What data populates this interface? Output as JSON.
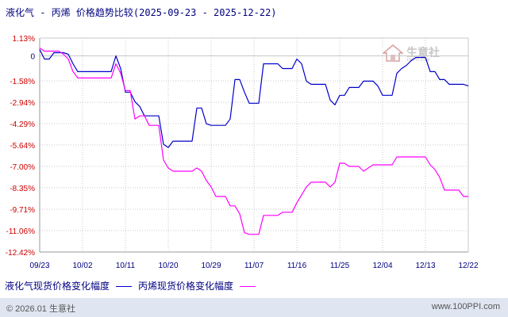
{
  "header": {
    "title": "液化气 - 丙烯 价格趋势比较(2025-09-23 - 2025-12-22)"
  },
  "legend": {
    "series1": "液化气现货价格变化幅度",
    "series2": "丙烯现货价格变化幅度"
  },
  "footer": {
    "copyright": "© 2026.01 生意社",
    "url": "www.100PPI.com"
  },
  "watermark": {
    "text": "生意社",
    "sub": "100PPI.COM"
  },
  "colors": {
    "series1": "#0000cc",
    "series2": "#ff00ff",
    "axis_text_red": "#cc0000",
    "axis_text_blue": "#000080",
    "grid": "#c8c8c8"
  },
  "chart_data": {
    "type": "line",
    "title": "液化气 - 丙烯 价格趋势比较(2025-09-23 - 2025-12-22)",
    "x_range": [
      "2025-09-23",
      "2025-12-22"
    ],
    "x_ticks": [
      "09/23",
      "10/02",
      "10/11",
      "10/20",
      "10/29",
      "11/07",
      "11/16",
      "11/25",
      "12/04",
      "12/13",
      "12/22"
    ],
    "y_ticks": [
      "1.13%",
      "0",
      "-1.58%",
      "-2.94%",
      "-4.29%",
      "-5.64%",
      "-7.00%",
      "-8.35%",
      "-9.71%",
      "-11.06%",
      "-12.42%"
    ],
    "ylim": [
      -12.42,
      1.13
    ],
    "grid": true,
    "legend_position": "bottom",
    "series": [
      {
        "name": "液化气现货价格变化幅度",
        "color": "#0000cc",
        "points": [
          [
            "09-23",
            0.4
          ],
          [
            "09-24",
            -0.2
          ],
          [
            "09-25",
            -0.2
          ],
          [
            "09-26",
            0.2
          ],
          [
            "09-27",
            0.2
          ],
          [
            "09-28",
            0.2
          ],
          [
            "09-29",
            0.1
          ],
          [
            "09-30",
            -0.5
          ],
          [
            "10-01",
            -1.0
          ],
          [
            "10-02",
            -1.0
          ],
          [
            "10-03",
            -1.0
          ],
          [
            "10-04",
            -1.0
          ],
          [
            "10-05",
            -1.0
          ],
          [
            "10-06",
            -1.0
          ],
          [
            "10-07",
            -1.0
          ],
          [
            "10-08",
            -1.0
          ],
          [
            "10-09",
            0.0
          ],
          [
            "10-10",
            -0.8
          ],
          [
            "10-11",
            -2.3
          ],
          [
            "10-12",
            -2.3
          ],
          [
            "10-13",
            -2.9
          ],
          [
            "10-14",
            -3.2
          ],
          [
            "10-15",
            -3.8
          ],
          [
            "10-16",
            -3.8
          ],
          [
            "10-17",
            -3.8
          ],
          [
            "10-18",
            -3.8
          ],
          [
            "10-19",
            -5.6
          ],
          [
            "10-20",
            -5.8
          ],
          [
            "10-21",
            -5.4
          ],
          [
            "10-22",
            -5.4
          ],
          [
            "10-23",
            -5.4
          ],
          [
            "10-24",
            -5.4
          ],
          [
            "10-25",
            -5.4
          ],
          [
            "10-26",
            -3.3
          ],
          [
            "10-27",
            -3.3
          ],
          [
            "10-28",
            -4.3
          ],
          [
            "10-29",
            -4.4
          ],
          [
            "10-30",
            -4.4
          ],
          [
            "10-31",
            -4.4
          ],
          [
            "11-01",
            -4.4
          ],
          [
            "11-02",
            -4.0
          ],
          [
            "11-03",
            -1.5
          ],
          [
            "11-04",
            -1.5
          ],
          [
            "11-05",
            -2.3
          ],
          [
            "11-06",
            -3.0
          ],
          [
            "11-07",
            -3.0
          ],
          [
            "11-08",
            -3.0
          ],
          [
            "11-09",
            -0.5
          ],
          [
            "11-10",
            -0.5
          ],
          [
            "11-11",
            -0.5
          ],
          [
            "11-12",
            -0.5
          ],
          [
            "11-13",
            -0.8
          ],
          [
            "11-14",
            -0.8
          ],
          [
            "11-15",
            -0.8
          ],
          [
            "11-16",
            -0.2
          ],
          [
            "11-17",
            -0.5
          ],
          [
            "11-18",
            -1.6
          ],
          [
            "11-19",
            -1.8
          ],
          [
            "11-20",
            -1.8
          ],
          [
            "11-21",
            -1.8
          ],
          [
            "11-22",
            -1.8
          ],
          [
            "11-23",
            -2.8
          ],
          [
            "11-24",
            -3.1
          ],
          [
            "11-25",
            -2.5
          ],
          [
            "11-26",
            -2.5
          ],
          [
            "11-27",
            -2.0
          ],
          [
            "11-28",
            -2.0
          ],
          [
            "11-29",
            -2.0
          ],
          [
            "11-30",
            -1.6
          ],
          [
            "12-01",
            -1.6
          ],
          [
            "12-02",
            -1.6
          ],
          [
            "12-03",
            -1.9
          ],
          [
            "12-04",
            -2.5
          ],
          [
            "12-05",
            -2.5
          ],
          [
            "12-06",
            -2.5
          ],
          [
            "12-07",
            -1.1
          ],
          [
            "12-08",
            -0.8
          ],
          [
            "12-09",
            -0.6
          ],
          [
            "12-10",
            -0.3
          ],
          [
            "12-11",
            -0.1
          ],
          [
            "12-12",
            -0.1
          ],
          [
            "12-13",
            -0.1
          ],
          [
            "12-14",
            -1.0
          ],
          [
            "12-15",
            -1.0
          ],
          [
            "12-16",
            -1.5
          ],
          [
            "12-17",
            -1.5
          ],
          [
            "12-18",
            -1.8
          ],
          [
            "12-19",
            -1.8
          ],
          [
            "12-20",
            -1.8
          ],
          [
            "12-21",
            -1.8
          ],
          [
            "12-22",
            -1.9
          ]
        ]
      },
      {
        "name": "丙烯现货价格变化幅度",
        "color": "#ff00ff",
        "points": [
          [
            "09-23",
            0.5
          ],
          [
            "09-24",
            0.3
          ],
          [
            "09-25",
            0.3
          ],
          [
            "09-26",
            0.3
          ],
          [
            "09-27",
            0.3
          ],
          [
            "09-28",
            0.1
          ],
          [
            "09-29",
            -0.2
          ],
          [
            "09-30",
            -1.0
          ],
          [
            "10-01",
            -1.4
          ],
          [
            "10-02",
            -1.4
          ],
          [
            "10-03",
            -1.4
          ],
          [
            "10-04",
            -1.4
          ],
          [
            "10-05",
            -1.4
          ],
          [
            "10-06",
            -1.4
          ],
          [
            "10-07",
            -1.4
          ],
          [
            "10-08",
            -1.4
          ],
          [
            "10-09",
            -0.5
          ],
          [
            "10-10",
            -1.1
          ],
          [
            "10-11",
            -2.2
          ],
          [
            "10-12",
            -2.2
          ],
          [
            "10-13",
            -4.0
          ],
          [
            "10-14",
            -3.8
          ],
          [
            "10-15",
            -3.8
          ],
          [
            "10-16",
            -4.4
          ],
          [
            "10-17",
            -4.4
          ],
          [
            "10-18",
            -4.4
          ],
          [
            "10-19",
            -6.6
          ],
          [
            "10-20",
            -7.1
          ],
          [
            "10-21",
            -7.3
          ],
          [
            "10-22",
            -7.3
          ],
          [
            "10-23",
            -7.3
          ],
          [
            "10-24",
            -7.3
          ],
          [
            "10-25",
            -7.3
          ],
          [
            "10-26",
            -7.1
          ],
          [
            "10-27",
            -7.3
          ],
          [
            "10-28",
            -7.9
          ],
          [
            "10-29",
            -8.3
          ],
          [
            "10-30",
            -8.9
          ],
          [
            "10-31",
            -8.9
          ],
          [
            "11-01",
            -8.9
          ],
          [
            "11-02",
            -9.5
          ],
          [
            "11-03",
            -9.5
          ],
          [
            "11-04",
            -10.0
          ],
          [
            "11-05",
            -11.2
          ],
          [
            "11-06",
            -11.3
          ],
          [
            "11-07",
            -11.3
          ],
          [
            "11-08",
            -11.3
          ],
          [
            "11-09",
            -10.1
          ],
          [
            "11-10",
            -10.1
          ],
          [
            "11-11",
            -10.1
          ],
          [
            "11-12",
            -10.1
          ],
          [
            "11-13",
            -9.9
          ],
          [
            "11-14",
            -9.9
          ],
          [
            "11-15",
            -9.9
          ],
          [
            "11-16",
            -9.3
          ],
          [
            "11-17",
            -8.8
          ],
          [
            "11-18",
            -8.3
          ],
          [
            "11-19",
            -8.0
          ],
          [
            "11-20",
            -8.0
          ],
          [
            "11-21",
            -8.0
          ],
          [
            "11-22",
            -8.0
          ],
          [
            "11-23",
            -8.3
          ],
          [
            "11-24",
            -8.0
          ],
          [
            "11-25",
            -6.8
          ],
          [
            "11-26",
            -6.8
          ],
          [
            "11-27",
            -7.0
          ],
          [
            "11-28",
            -7.0
          ],
          [
            "11-29",
            -7.0
          ],
          [
            "11-30",
            -7.3
          ],
          [
            "12-01",
            -7.1
          ],
          [
            "12-02",
            -6.9
          ],
          [
            "12-03",
            -6.9
          ],
          [
            "12-04",
            -6.9
          ],
          [
            "12-05",
            -6.9
          ],
          [
            "12-06",
            -6.9
          ],
          [
            "12-07",
            -6.4
          ],
          [
            "12-08",
            -6.4
          ],
          [
            "12-09",
            -6.4
          ],
          [
            "12-10",
            -6.4
          ],
          [
            "12-11",
            -6.4
          ],
          [
            "12-12",
            -6.4
          ],
          [
            "12-13",
            -6.4
          ],
          [
            "12-14",
            -6.9
          ],
          [
            "12-15",
            -7.2
          ],
          [
            "12-16",
            -7.7
          ],
          [
            "12-17",
            -8.5
          ],
          [
            "12-18",
            -8.5
          ],
          [
            "12-19",
            -8.5
          ],
          [
            "12-20",
            -8.5
          ],
          [
            "12-21",
            -8.9
          ],
          [
            "12-22",
            -8.9
          ]
        ]
      }
    ]
  }
}
